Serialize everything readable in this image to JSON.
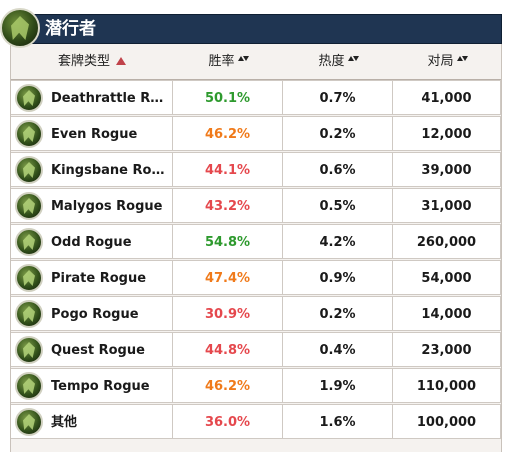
{
  "header": {
    "title": "潜行者"
  },
  "columns": {
    "deck": "套牌类型",
    "winrate": "胜率",
    "popularity": "热度",
    "games": "对局"
  },
  "colors": {
    "title_bar": "#1f3552",
    "winrate_green": "#2e9a2e",
    "winrate_orange": "#f07a1a",
    "winrate_red": "#e5484d",
    "sort_active": "#c0424a"
  },
  "rows": [
    {
      "name": "Deathrattle Ro...",
      "winrate": "50.1%",
      "wr_color": "green",
      "popularity": "0.7%",
      "games": "41,000"
    },
    {
      "name": "Even Rogue",
      "winrate": "46.2%",
      "wr_color": "orange",
      "popularity": "0.2%",
      "games": "12,000"
    },
    {
      "name": "Kingsbane Rog...",
      "winrate": "44.1%",
      "wr_color": "red",
      "popularity": "0.6%",
      "games": "39,000"
    },
    {
      "name": "Malygos Rogue",
      "winrate": "43.2%",
      "wr_color": "red",
      "popularity": "0.5%",
      "games": "31,000"
    },
    {
      "name": "Odd Rogue",
      "winrate": "54.8%",
      "wr_color": "green",
      "popularity": "4.2%",
      "games": "260,000"
    },
    {
      "name": "Pirate Rogue",
      "winrate": "47.4%",
      "wr_color": "orange",
      "popularity": "0.9%",
      "games": "54,000"
    },
    {
      "name": "Pogo Rogue",
      "winrate": "30.9%",
      "wr_color": "red",
      "popularity": "0.2%",
      "games": "14,000"
    },
    {
      "name": "Quest Rogue",
      "winrate": "44.8%",
      "wr_color": "red",
      "popularity": "0.4%",
      "games": "23,000"
    },
    {
      "name": "Tempo Rogue",
      "winrate": "46.2%",
      "wr_color": "orange",
      "popularity": "1.9%",
      "games": "110,000"
    },
    {
      "name": "其他",
      "winrate": "36.0%",
      "wr_color": "red",
      "popularity": "1.6%",
      "games": "100,000"
    }
  ]
}
